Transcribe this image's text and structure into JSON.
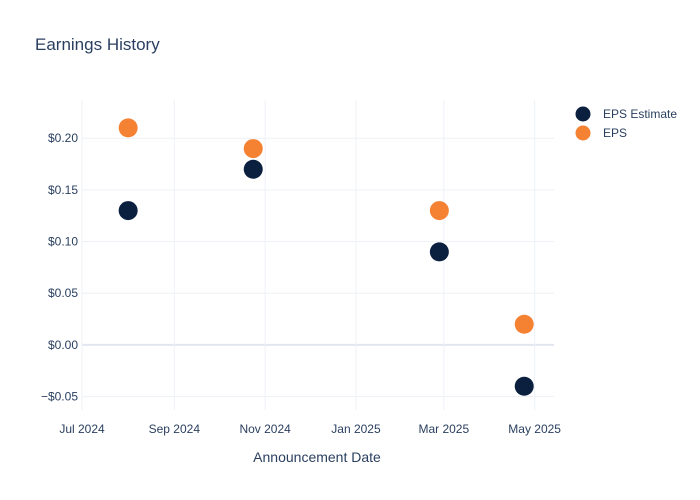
{
  "chart_data": {
    "type": "scatter",
    "title": "Earnings History",
    "xlabel": "Announcement Date",
    "ylabel": "",
    "x_ticks": [
      {
        "date": "2024-07-01",
        "label": "Jul 2024"
      },
      {
        "date": "2024-09-01",
        "label": "Sep 2024"
      },
      {
        "date": "2024-11-01",
        "label": "Nov 2024"
      },
      {
        "date": "2025-01-01",
        "label": "Jan 2025"
      },
      {
        "date": "2025-03-01",
        "label": "Mar 2025"
      },
      {
        "date": "2025-05-01",
        "label": "May 2025"
      }
    ],
    "y_ticks": [
      {
        "value": -0.05,
        "label": "−$0.05"
      },
      {
        "value": 0.0,
        "label": "$0.00"
      },
      {
        "value": 0.05,
        "label": "$0.05"
      },
      {
        "value": 0.1,
        "label": "$0.10"
      },
      {
        "value": 0.15,
        "label": "$0.15"
      },
      {
        "value": 0.2,
        "label": "$0.20"
      }
    ],
    "xlim": [
      "2024-07-01",
      "2025-05-14"
    ],
    "ylim": [
      -0.063,
      0.237
    ],
    "grid": true,
    "legend_position": "top-right",
    "series": [
      {
        "name": "EPS Estimate",
        "color": "#0b1f3f",
        "points": [
          {
            "x": "2024-08-01",
            "y": 0.13
          },
          {
            "x": "2024-10-24",
            "y": 0.17
          },
          {
            "x": "2025-02-26",
            "y": 0.09
          },
          {
            "x": "2025-04-24",
            "y": -0.04
          }
        ]
      },
      {
        "name": "EPS",
        "color": "#f58233",
        "points": [
          {
            "x": "2024-08-01",
            "y": 0.21
          },
          {
            "x": "2024-10-24",
            "y": 0.19
          },
          {
            "x": "2025-02-26",
            "y": 0.13
          },
          {
            "x": "2025-04-24",
            "y": 0.02
          }
        ]
      }
    ]
  }
}
